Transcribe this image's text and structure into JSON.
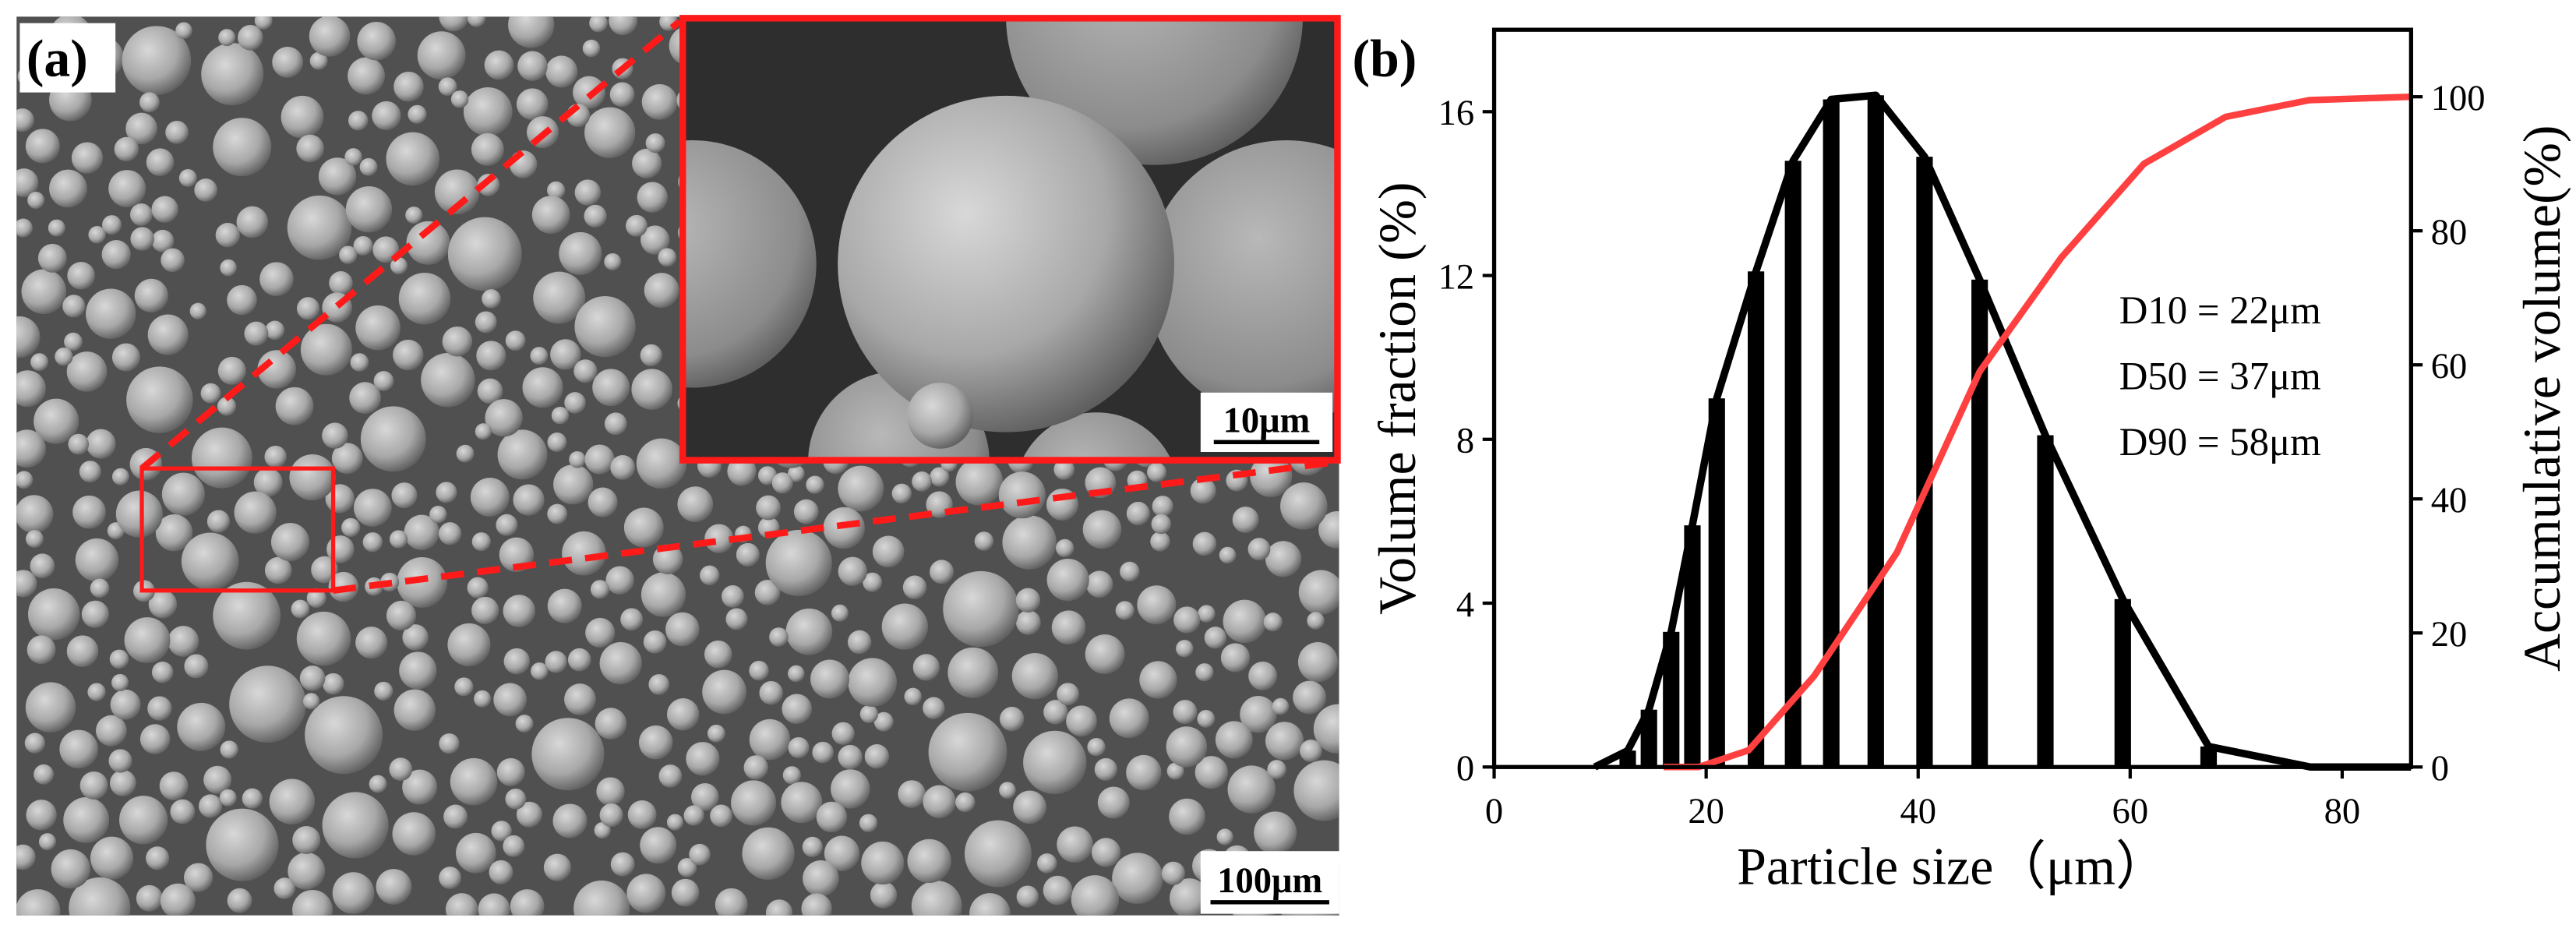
{
  "panel_a": {
    "label": "(a)",
    "inset_scale_bar": "10μm",
    "scale_bar": "100μm"
  },
  "chart_data": {
    "type": "bar_line",
    "panel_label": "(b)",
    "x_label": "Particle size（μm）",
    "y_label": "Volume fraction (%)",
    "y2_label": "Accumulative volume(%)",
    "annotations": [
      "D10 = 22μm",
      "D50 = 37μm",
      "D90 = 58μm"
    ],
    "xlim": [
      0,
      86.5
    ],
    "xticks": [
      0,
      20,
      40,
      60,
      80
    ],
    "ylim": [
      0,
      18
    ],
    "yticks": [
      0,
      4,
      8,
      12,
      16
    ],
    "y2lim": [
      0,
      110
    ],
    "y2ticks": [
      0,
      20,
      40,
      60,
      80,
      100
    ],
    "series": [
      {
        "type": "bar",
        "color": "#000000",
        "x": [
          12.6,
          14.6,
          16.7,
          18.7,
          21.0,
          24.7,
          28.2,
          31.8,
          36.0,
          40.6,
          45.8,
          52.0,
          59.3,
          67.4
        ],
        "values": [
          0.4,
          1.4,
          3.3,
          5.9,
          9.0,
          12.1,
          14.8,
          16.3,
          16.4,
          14.9,
          11.9,
          8.1,
          4.1,
          0.5
        ]
      },
      {
        "type": "line",
        "color": "#000000",
        "x": [
          9.5,
          12.6,
          14.6,
          16.7,
          18.7,
          21.0,
          24.7,
          28.2,
          31.8,
          36.0,
          40.6,
          45.8,
          52.0,
          59.3,
          67.4,
          77.0,
          86.5
        ],
        "values": [
          0,
          0.4,
          1.4,
          3.3,
          5.9,
          9.0,
          12.1,
          14.8,
          16.3,
          16.4,
          14.9,
          11.9,
          8.1,
          4.1,
          0.5,
          0,
          0
        ]
      },
      {
        "type": "line",
        "axis": "y2",
        "color": "#ff4040",
        "x": [
          16,
          19.3,
          24,
          30.2,
          38,
          45.8,
          53.5,
          61.3,
          69,
          76.9,
          86.5
        ],
        "values": [
          0,
          0,
          2.5,
          13.6,
          32,
          59,
          76,
          90,
          97,
          99.5,
          100
        ]
      }
    ]
  }
}
